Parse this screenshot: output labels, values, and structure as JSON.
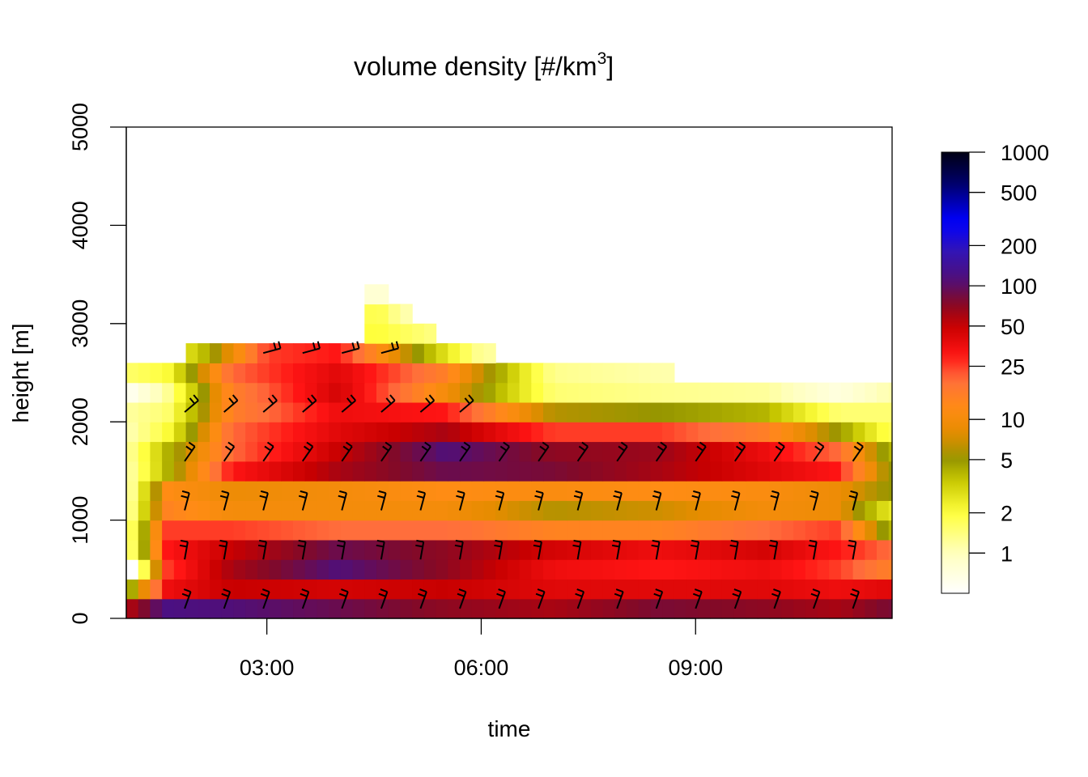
{
  "chart_data": {
    "type": "heatmap",
    "title": "volume density [#/km",
    "title_superscript": "3",
    "title_suffix": "]",
    "xlabel": "time",
    "ylabel": "height [m]",
    "x_ticks": [
      "03:00",
      "06:00",
      "09:00"
    ],
    "x_tick_hours": [
      3,
      6,
      9
    ],
    "xlim_hours": [
      1.033,
      11.75
    ],
    "y_ticks": [
      0,
      1000,
      2000,
      3000,
      4000,
      5000
    ],
    "ylim": [
      0,
      5000
    ],
    "bin_height_m": 200,
    "time_step_hours": 0.1667,
    "colorbar": {
      "scale": "log",
      "ticks": [
        1,
        2,
        5,
        10,
        25,
        50,
        100,
        200,
        500,
        1000
      ],
      "range": [
        0.5,
        1000
      ]
    },
    "altitude_profiles": [
      {
        "alt_m": 100,
        "values": [
          {
            "t": 1.1,
            "v": 60
          },
          {
            "t": 1.6,
            "v": 120
          },
          {
            "t": 2.5,
            "v": 110
          },
          {
            "t": 4.0,
            "v": 90
          },
          {
            "t": 5.5,
            "v": 70
          },
          {
            "t": 7.0,
            "v": 60
          },
          {
            "t": 8.5,
            "v": 80
          },
          {
            "t": 10.0,
            "v": 70
          },
          {
            "t": 11.0,
            "v": 60
          },
          {
            "t": 11.7,
            "v": 80
          }
        ]
      },
      {
        "alt_m": 300,
        "values": [
          {
            "t": 1.1,
            "v": 4
          },
          {
            "t": 1.6,
            "v": 35
          },
          {
            "t": 2.5,
            "v": 50
          },
          {
            "t": 4.0,
            "v": 45
          },
          {
            "t": 5.5,
            "v": 50
          },
          {
            "t": 7.0,
            "v": 40
          },
          {
            "t": 8.5,
            "v": 40
          },
          {
            "t": 10.0,
            "v": 40
          },
          {
            "t": 11.0,
            "v": 35
          },
          {
            "t": 11.7,
            "v": 40
          }
        ]
      },
      {
        "alt_m": 500,
        "values": [
          {
            "t": 1.1,
            "v": 0.4
          },
          {
            "t": 1.6,
            "v": 25
          },
          {
            "t": 2.5,
            "v": 60
          },
          {
            "t": 4.0,
            "v": 110
          },
          {
            "t": 5.5,
            "v": 70
          },
          {
            "t": 7.0,
            "v": 35
          },
          {
            "t": 8.5,
            "v": 30
          },
          {
            "t": 10.0,
            "v": 35
          },
          {
            "t": 11.0,
            "v": 25
          },
          {
            "t": 11.7,
            "v": 15
          }
        ]
      },
      {
        "alt_m": 700,
        "values": [
          {
            "t": 1.1,
            "v": 1.5
          },
          {
            "t": 1.6,
            "v": 30
          },
          {
            "t": 2.5,
            "v": 50
          },
          {
            "t": 4.0,
            "v": 90
          },
          {
            "t": 5.5,
            "v": 70
          },
          {
            "t": 7.0,
            "v": 45
          },
          {
            "t": 8.5,
            "v": 35
          },
          {
            "t": 10.0,
            "v": 45
          },
          {
            "t": 11.0,
            "v": 30
          },
          {
            "t": 11.7,
            "v": 20
          }
        ]
      },
      {
        "alt_m": 900,
        "values": [
          {
            "t": 1.1,
            "v": 1.6
          },
          {
            "t": 1.6,
            "v": 25
          },
          {
            "t": 2.5,
            "v": 25
          },
          {
            "t": 4.0,
            "v": 20
          },
          {
            "t": 5.5,
            "v": 20
          },
          {
            "t": 7.0,
            "v": 14
          },
          {
            "t": 8.5,
            "v": 14
          },
          {
            "t": 10.0,
            "v": 20
          },
          {
            "t": 11.0,
            "v": 25
          },
          {
            "t": 11.7,
            "v": 4
          }
        ]
      },
      {
        "alt_m": 1100,
        "values": [
          {
            "t": 1.1,
            "v": 1.3
          },
          {
            "t": 1.6,
            "v": 14
          },
          {
            "t": 2.5,
            "v": 10
          },
          {
            "t": 4.0,
            "v": 10
          },
          {
            "t": 5.5,
            "v": 10
          },
          {
            "t": 7.0,
            "v": 6
          },
          {
            "t": 8.5,
            "v": 7
          },
          {
            "t": 10.0,
            "v": 10
          },
          {
            "t": 11.0,
            "v": 9
          },
          {
            "t": 11.7,
            "v": 2.5
          }
        ]
      },
      {
        "alt_m": 1300,
        "values": [
          {
            "t": 1.1,
            "v": 1.2
          },
          {
            "t": 1.6,
            "v": 12
          },
          {
            "t": 2.5,
            "v": 9
          },
          {
            "t": 4.0,
            "v": 10
          },
          {
            "t": 5.5,
            "v": 12
          },
          {
            "t": 7.0,
            "v": 11
          },
          {
            "t": 8.5,
            "v": 12
          },
          {
            "t": 10.0,
            "v": 11
          },
          {
            "t": 11.0,
            "v": 9
          },
          {
            "t": 11.7,
            "v": 5
          }
        ]
      },
      {
        "alt_m": 1500,
        "values": [
          {
            "t": 1.1,
            "v": 1.2
          },
          {
            "t": 1.6,
            "v": 4
          },
          {
            "t": 2.5,
            "v": 30
          },
          {
            "t": 4.0,
            "v": 60
          },
          {
            "t": 5.5,
            "v": 90
          },
          {
            "t": 7.0,
            "v": 80
          },
          {
            "t": 8.5,
            "v": 60
          },
          {
            "t": 10.0,
            "v": 40
          },
          {
            "t": 11.0,
            "v": 30
          },
          {
            "t": 11.7,
            "v": 5
          }
        ]
      },
      {
        "alt_m": 1700,
        "values": [
          {
            "t": 1.1,
            "v": 1.3
          },
          {
            "t": 1.6,
            "v": 4
          },
          {
            "t": 2.5,
            "v": 20
          },
          {
            "t": 4.0,
            "v": 50
          },
          {
            "t": 5.5,
            "v": 110
          },
          {
            "t": 7.0,
            "v": 70
          },
          {
            "t": 8.5,
            "v": 65
          },
          {
            "t": 10.0,
            "v": 35
          },
          {
            "t": 11.0,
            "v": 20
          },
          {
            "t": 11.7,
            "v": 4
          }
        ]
      },
      {
        "alt_m": 1900,
        "values": [
          {
            "t": 1.1,
            "v": 1.1
          },
          {
            "t": 1.6,
            "v": 2
          },
          {
            "t": 2.5,
            "v": 20
          },
          {
            "t": 4.0,
            "v": 40
          },
          {
            "t": 5.5,
            "v": 60
          },
          {
            "t": 7.0,
            "v": 25
          },
          {
            "t": 8.5,
            "v": 25
          },
          {
            "t": 10.0,
            "v": 15
          },
          {
            "t": 11.0,
            "v": 5
          },
          {
            "t": 11.7,
            "v": 1.8
          }
        ]
      },
      {
        "alt_m": 2100,
        "values": [
          {
            "t": 1.1,
            "v": 1.2
          },
          {
            "t": 1.6,
            "v": 1.5
          },
          {
            "t": 2.5,
            "v": 15
          },
          {
            "t": 4.0,
            "v": 35
          },
          {
            "t": 5.5,
            "v": 30
          },
          {
            "t": 7.0,
            "v": 6
          },
          {
            "t": 8.5,
            "v": 5
          },
          {
            "t": 10.0,
            "v": 4
          },
          {
            "t": 11.0,
            "v": 1.5
          },
          {
            "t": 11.7,
            "v": 1.5
          }
        ]
      },
      {
        "alt_m": 2300,
        "values": [
          {
            "t": 1.1,
            "v": 0.6
          },
          {
            "t": 1.6,
            "v": 1.2
          },
          {
            "t": 2.5,
            "v": 15
          },
          {
            "t": 4.0,
            "v": 45
          },
          {
            "t": 5.5,
            "v": 10
          },
          {
            "t": 7.0,
            "v": 1.5
          },
          {
            "t": 8.5,
            "v": 1.3
          },
          {
            "t": 10.0,
            "v": 1.2
          },
          {
            "t": 11.0,
            "v": 0.7
          },
          {
            "t": 11.7,
            "v": 1.1
          }
        ]
      },
      {
        "alt_m": 2500,
        "values": [
          {
            "t": 1.1,
            "v": 1.6
          },
          {
            "t": 1.6,
            "v": 2
          },
          {
            "t": 2.5,
            "v": 20
          },
          {
            "t": 4.0,
            "v": 40
          },
          {
            "t": 5.5,
            "v": 15
          },
          {
            "t": 7.0,
            "v": 1.3
          },
          {
            "t": 8.5,
            "v": 1.1
          }
        ]
      },
      {
        "alt_m": 2700,
        "values": [
          {
            "t": 2.0,
            "v": 3
          },
          {
            "t": 3.0,
            "v": 25
          },
          {
            "t": 4.0,
            "v": 30
          },
          {
            "t": 5.0,
            "v": 6
          },
          {
            "t": 6.0,
            "v": 1.2
          }
        ]
      },
      {
        "alt_m": 2900,
        "values": [
          {
            "t": 4.6,
            "v": 2
          },
          {
            "t": 5.3,
            "v": 1.4
          }
        ]
      },
      {
        "alt_m": 3100,
        "values": [
          {
            "t": 4.6,
            "v": 1.8
          },
          {
            "t": 4.9,
            "v": 1.1
          }
        ]
      },
      {
        "alt_m": 3300,
        "values": [
          {
            "t": 4.6,
            "v": 0.8
          }
        ]
      }
    ],
    "wind_barb_levels_m": [
      100,
      600,
      1100,
      1600,
      2100,
      2700
    ]
  }
}
